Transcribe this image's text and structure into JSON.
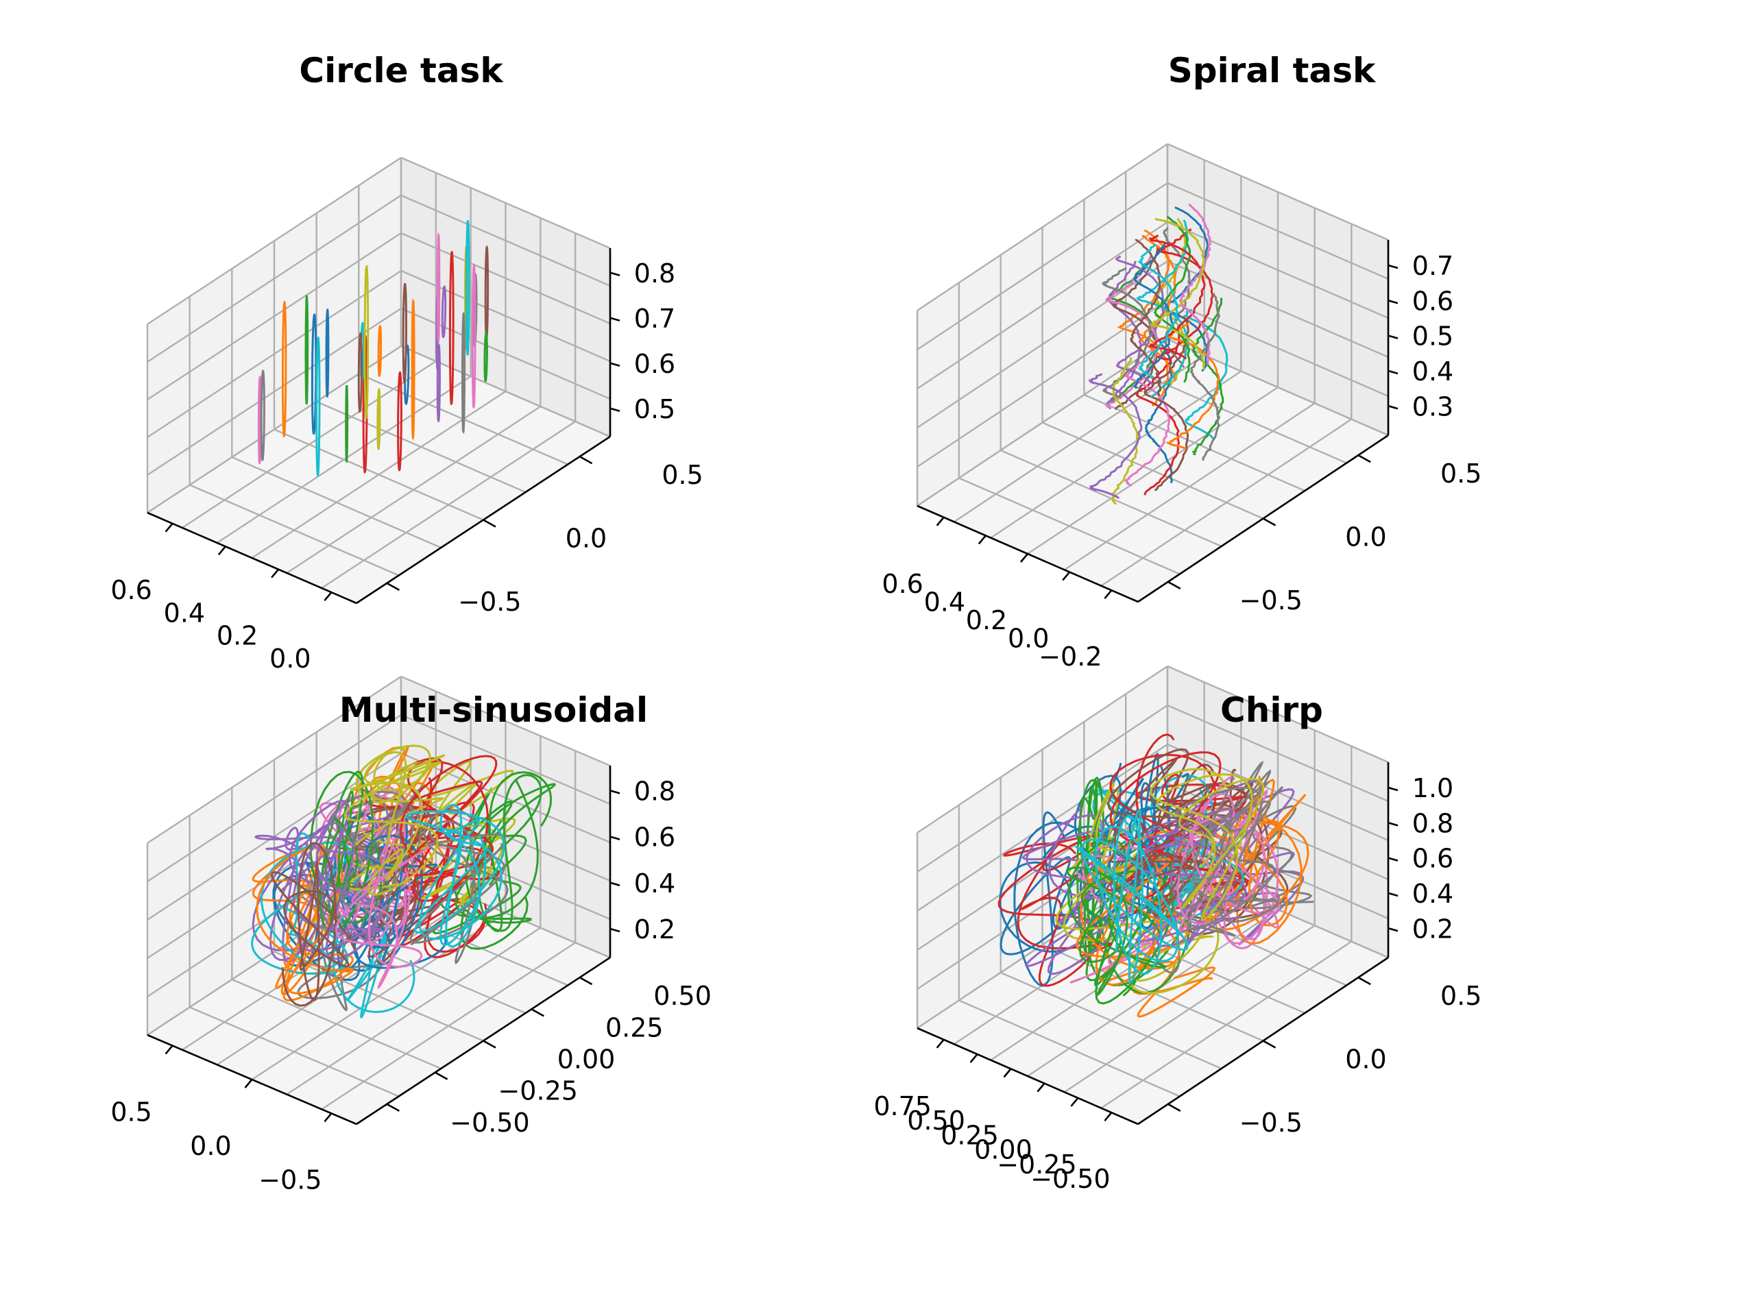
{
  "chart_data": [
    {
      "type": "line3d",
      "title": "Circle task",
      "xticks": [
        "0.0",
        "0.2",
        "0.4",
        "0.6"
      ],
      "yticks": [
        "−0.5",
        "0.0",
        "0.5"
      ],
      "zticks": [
        "0.5",
        "0.6",
        "0.7",
        "0.8"
      ],
      "xlim": [
        -0.1,
        0.75
      ],
      "ylim": [
        -0.75,
        0.8
      ],
      "zlim": [
        0.45,
        0.83
      ],
      "grid": true,
      "colors": [
        "#1f77b4",
        "#ff7f0e",
        "#2ca02c",
        "#d62728",
        "#9467bd",
        "#8c564b",
        "#e377c2",
        "#7f7f7f",
        "#bcbd22",
        "#17becf"
      ],
      "trajectory_count": 30
    },
    {
      "type": "line3d",
      "title": "Spiral task",
      "xticks": [
        "−0.2",
        "0.0",
        "0.2",
        "0.4",
        "0.6"
      ],
      "yticks": [
        "−0.5",
        "0.0",
        "0.5"
      ],
      "zticks": [
        "0.3",
        "0.4",
        "0.5",
        "0.6",
        "0.7"
      ],
      "xlim": [
        -0.3,
        0.75
      ],
      "ylim": [
        -0.75,
        0.8
      ],
      "zlim": [
        0.28,
        0.77
      ],
      "grid": true,
      "colors": [
        "#1f77b4",
        "#ff7f0e",
        "#2ca02c",
        "#d62728",
        "#9467bd",
        "#8c564b",
        "#e377c2",
        "#7f7f7f",
        "#bcbd22",
        "#17becf"
      ],
      "trajectory_count": 30
    },
    {
      "type": "line3d",
      "title": "Multi-sinusoidal",
      "xticks": [
        "−0.5",
        "0.0",
        "0.5"
      ],
      "yticks": [
        "−0.50",
        "−0.25",
        "0.00",
        "0.25",
        "0.50"
      ],
      "zticks": [
        "0.2",
        "0.4",
        "0.6",
        "0.8"
      ],
      "xlim": [
        -0.8,
        0.85
      ],
      "ylim": [
        -0.65,
        0.65
      ],
      "zlim": [
        0.15,
        0.98
      ],
      "grid": true,
      "colors": [
        "#1f77b4",
        "#ff7f0e",
        "#2ca02c",
        "#d62728",
        "#9467bd",
        "#8c564b",
        "#e377c2",
        "#7f7f7f",
        "#bcbd22",
        "#17becf"
      ],
      "trajectory_count": 30
    },
    {
      "type": "line3d",
      "title": "Chirp",
      "xticks": [
        "−0.50",
        "−0.25",
        "0.00",
        "0.25",
        "0.50",
        "0.75"
      ],
      "yticks": [
        "−0.5",
        "0.0",
        "0.5"
      ],
      "zticks": [
        "0.2",
        "0.4",
        "0.6",
        "0.8",
        "1.0"
      ],
      "xlim": [
        -0.65,
        0.85
      ],
      "ylim": [
        -0.75,
        0.8
      ],
      "zlim": [
        0.15,
        1.12
      ],
      "grid": true,
      "colors": [
        "#1f77b4",
        "#ff7f0e",
        "#2ca02c",
        "#d62728",
        "#9467bd",
        "#8c564b",
        "#e377c2",
        "#7f7f7f",
        "#bcbd22",
        "#17becf"
      ],
      "trajectory_count": 30
    }
  ]
}
